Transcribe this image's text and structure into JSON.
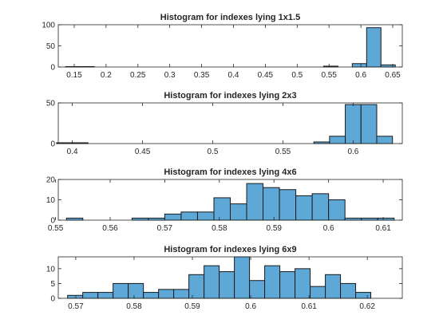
{
  "chart_data": [
    {
      "type": "bar",
      "subtype": "histogram",
      "title": "Histogram for indexes lying 1x1.5",
      "xlim": [
        0.125,
        0.665
      ],
      "ylim": [
        0,
        100
      ],
      "xticks": [
        0.15,
        0.2,
        0.25,
        0.3,
        0.35,
        0.4,
        0.45,
        0.5,
        0.55,
        0.6,
        0.65
      ],
      "yticks": [
        0,
        50,
        100
      ],
      "bin_width": 0.0225,
      "bins": [
        {
          "x0": 0.1365,
          "count": 1
        },
        {
          "x0": 0.159,
          "count": 1
        },
        {
          "x0": 0.5415,
          "count": 2
        },
        {
          "x0": 0.5865,
          "count": 8
        },
        {
          "x0": 0.609,
          "count": 93
        },
        {
          "x0": 0.6315,
          "count": 5
        }
      ]
    },
    {
      "type": "bar",
      "subtype": "histogram",
      "title": "Histogram for indexes lying 2x3",
      "xlim": [
        0.39,
        0.635
      ],
      "ylim": [
        0,
        50
      ],
      "xticks": [
        0.4,
        0.45,
        0.5,
        0.55,
        0.6
      ],
      "yticks": [
        0,
        50
      ],
      "bin_width": 0.0112,
      "bins": [
        {
          "x0": 0.3888,
          "count": 1
        },
        {
          "x0": 0.4,
          "count": 1
        },
        {
          "x0": 0.572,
          "count": 2
        },
        {
          "x0": 0.5832,
          "count": 9
        },
        {
          "x0": 0.5944,
          "count": 48
        },
        {
          "x0": 0.6056,
          "count": 48
        },
        {
          "x0": 0.6168,
          "count": 9
        }
      ]
    },
    {
      "type": "bar",
      "subtype": "histogram",
      "title": "Histogram for indexes lying 4x6",
      "xlim": [
        0.5505,
        0.6135
      ],
      "ylim": [
        0,
        20
      ],
      "xticks": [
        0.55,
        0.56,
        0.57,
        0.58,
        0.59,
        0.6,
        0.61
      ],
      "yticks": [
        0,
        10,
        20
      ],
      "bin_width": 0.003,
      "bins": [
        {
          "x0": 0.552,
          "count": 1
        },
        {
          "x0": 0.555,
          "count": 0
        },
        {
          "x0": 0.558,
          "count": 0
        },
        {
          "x0": 0.561,
          "count": 0
        },
        {
          "x0": 0.564,
          "count": 1
        },
        {
          "x0": 0.567,
          "count": 1
        },
        {
          "x0": 0.57,
          "count": 3
        },
        {
          "x0": 0.573,
          "count": 4
        },
        {
          "x0": 0.576,
          "count": 4
        },
        {
          "x0": 0.579,
          "count": 11
        },
        {
          "x0": 0.582,
          "count": 8
        },
        {
          "x0": 0.585,
          "count": 18
        },
        {
          "x0": 0.588,
          "count": 16
        },
        {
          "x0": 0.591,
          "count": 15
        },
        {
          "x0": 0.594,
          "count": 12
        },
        {
          "x0": 0.597,
          "count": 13
        },
        {
          "x0": 0.6,
          "count": 10
        },
        {
          "x0": 0.603,
          "count": 1
        },
        {
          "x0": 0.606,
          "count": 1
        },
        {
          "x0": 0.609,
          "count": 1
        }
      ]
    },
    {
      "type": "bar",
      "subtype": "histogram",
      "title": "Histogram for indexes lying 6x9",
      "xlim": [
        0.567,
        0.626
      ],
      "ylim": [
        0,
        14
      ],
      "xticks": [
        0.57,
        0.58,
        0.59,
        0.6,
        0.61,
        0.62
      ],
      "yticks": [
        0,
        5,
        10
      ],
      "bin_width": 0.0026,
      "bins": [
        {
          "x0": 0.5686,
          "count": 1
        },
        {
          "x0": 0.5712,
          "count": 2
        },
        {
          "x0": 0.5738,
          "count": 2
        },
        {
          "x0": 0.5764,
          "count": 5
        },
        {
          "x0": 0.579,
          "count": 5
        },
        {
          "x0": 0.5816,
          "count": 2
        },
        {
          "x0": 0.5842,
          "count": 3
        },
        {
          "x0": 0.5868,
          "count": 3
        },
        {
          "x0": 0.5894,
          "count": 8
        },
        {
          "x0": 0.592,
          "count": 11
        },
        {
          "x0": 0.5946,
          "count": 9
        },
        {
          "x0": 0.5972,
          "count": 14
        },
        {
          "x0": 0.5998,
          "count": 6
        },
        {
          "x0": 0.6024,
          "count": 11
        },
        {
          "x0": 0.605,
          "count": 9
        },
        {
          "x0": 0.6076,
          "count": 10
        },
        {
          "x0": 0.6102,
          "count": 4
        },
        {
          "x0": 0.6128,
          "count": 8
        },
        {
          "x0": 0.6154,
          "count": 5
        },
        {
          "x0": 0.618,
          "count": 2
        }
      ]
    }
  ],
  "style": {
    "bar_fill": "#5ea8d8",
    "bar_edge": "#1a1a1a",
    "axis_color": "#262626",
    "background": "#ffffff"
  }
}
